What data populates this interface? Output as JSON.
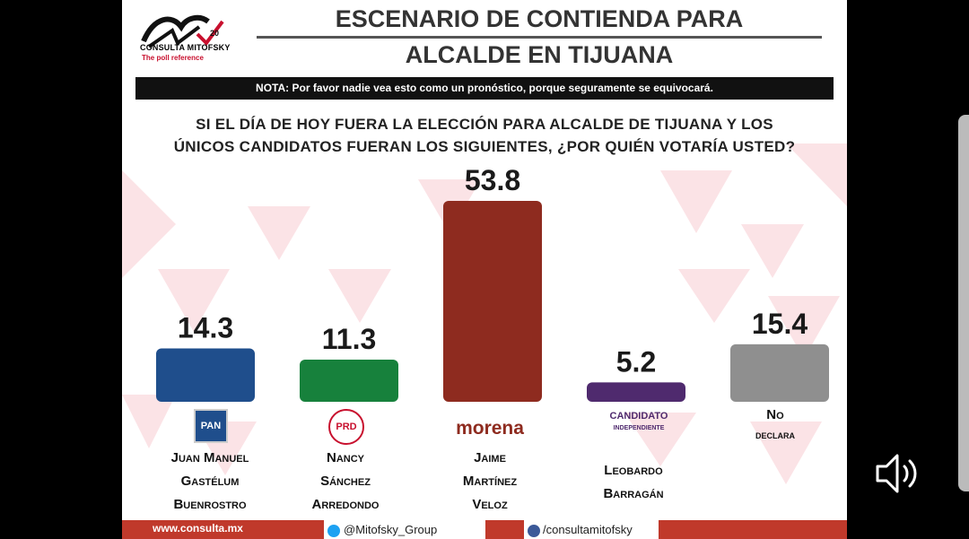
{
  "brand": {
    "name": "CONSULTA MITOFSKY",
    "tagline": "The poll reference",
    "anniversary": "20"
  },
  "title": {
    "line1": "ESCENARIO DE CONTIENDA PARA",
    "line2": "ALCALDE EN TIJUANA"
  },
  "note": "NOTA: Por favor nadie vea esto como un pronóstico, porque seguramente se equivocará.",
  "question": {
    "line1": "SI EL DÍA DE HOY FUERA LA ELECCIÓN PARA ALCALDE DE TIJUANA Y LOS",
    "line2": "ÚNICOS CANDIDATOS FUERAN LOS SIGUIENTES,  ¿POR QUIÉN VOTARÍA USTED?"
  },
  "chart_data": {
    "type": "bar",
    "categories": [
      "Juan Manuel Gastélum Buenrostro",
      "Nancy Sánchez Arredondo",
      "Jaime Martínez Veloz",
      "Leobardo Barragán",
      "No declara"
    ],
    "values": [
      14.3,
      11.3,
      53.8,
      5.2,
      15.4
    ],
    "value_labels": [
      "14.3",
      "11.3",
      "53.8",
      "5.2",
      "15.4"
    ],
    "colors": [
      "#1f4e8c",
      "#17813c",
      "#8e2b1f",
      "#4f2a6e",
      "#8f8f8f"
    ],
    "ylim": [
      0,
      60
    ],
    "grid": false,
    "legend": "none"
  },
  "candidates": [
    {
      "party": "PAN",
      "lines": [
        "Juan Manuel",
        "Gastélum",
        "Buenrostro"
      ]
    },
    {
      "party": "PRD",
      "lines": [
        "Nancy",
        "Sánchez",
        "Arredondo"
      ]
    },
    {
      "party": "morena",
      "lines": [
        "Jaime",
        "Martínez",
        "Veloz"
      ]
    },
    {
      "party_line1": "CANDIDATO",
      "party_line2": "INDEPENDIENTE",
      "lines": [
        "Leobardo",
        "Barragán"
      ]
    },
    {
      "lines": [
        "No",
        "declara"
      ]
    }
  ],
  "footer": {
    "site": "www.consulta.mx",
    "twitter": "@Mitofsky_Group",
    "facebook": "/consultamitofsky",
    "twitter_icon": "twitter-icon",
    "facebook_icon": "facebook-icon"
  },
  "overlay": {
    "icon": "volume-icon"
  }
}
